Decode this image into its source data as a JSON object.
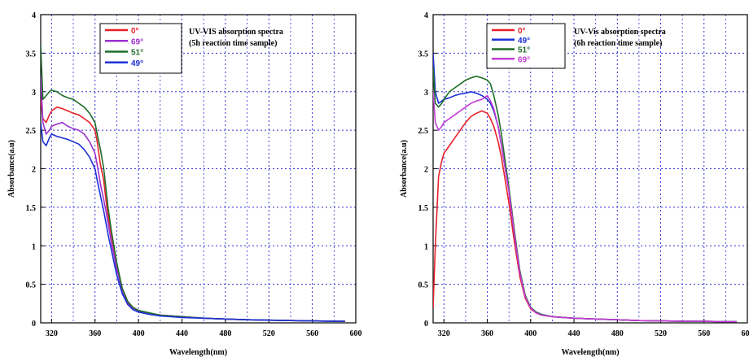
{
  "chart_data": [
    {
      "type": "line",
      "title_lines": [
        "UV-VIS absorption spectra",
        "(5h reaction time sample)"
      ],
      "xlabel": "Wavelength(nm)",
      "ylabel": "Absorbance(a.u)",
      "xlim": [
        310,
        600
      ],
      "ylim": [
        0,
        4
      ],
      "xticks": [
        "320",
        "360",
        "400",
        "440",
        "480",
        "520",
        "560",
        "600"
      ],
      "yticks": [
        "0",
        "0.5",
        "1",
        "1.5",
        "2",
        "2.5",
        "3",
        "3.5",
        "4"
      ],
      "grid": true,
      "legend_position": "top-left",
      "series": [
        {
          "name": "0°",
          "color": "#e8202a",
          "x": [
            310,
            312,
            315,
            318,
            320,
            325,
            330,
            335,
            340,
            345,
            350,
            355,
            360,
            362,
            365,
            368,
            370,
            372,
            375,
            380,
            385,
            390,
            395,
            400,
            410,
            420,
            440,
            460,
            480,
            500,
            520,
            540,
            560,
            580,
            590
          ],
          "y": [
            2.9,
            2.65,
            2.6,
            2.7,
            2.75,
            2.8,
            2.78,
            2.75,
            2.72,
            2.7,
            2.65,
            2.6,
            2.5,
            2.35,
            2.05,
            1.85,
            1.6,
            1.4,
            1.15,
            0.75,
            0.45,
            0.28,
            0.2,
            0.16,
            0.12,
            0.1,
            0.08,
            0.06,
            0.05,
            0.04,
            0.035,
            0.03,
            0.025,
            0.02,
            0.02
          ]
        },
        {
          "name": "69°",
          "color": "#9b30d0",
          "x": [
            310,
            312,
            315,
            318,
            320,
            325,
            330,
            335,
            340,
            345,
            350,
            355,
            360,
            362,
            365,
            368,
            370,
            372,
            375,
            380,
            385,
            390,
            395,
            400,
            410,
            420,
            440,
            460,
            480,
            500,
            520,
            540,
            560,
            580,
            590
          ],
          "y": [
            3.2,
            2.6,
            2.45,
            2.5,
            2.55,
            2.58,
            2.6,
            2.55,
            2.52,
            2.5,
            2.45,
            2.35,
            2.2,
            2.05,
            1.8,
            1.6,
            1.45,
            1.3,
            1.05,
            0.7,
            0.42,
            0.26,
            0.19,
            0.15,
            0.12,
            0.1,
            0.08,
            0.06,
            0.05,
            0.04,
            0.035,
            0.03,
            0.025,
            0.02,
            0.02
          ]
        },
        {
          "name": "51°",
          "color": "#1e6e2a",
          "x": [
            310,
            312,
            315,
            318,
            320,
            325,
            330,
            335,
            340,
            345,
            350,
            355,
            360,
            362,
            365,
            368,
            370,
            372,
            375,
            380,
            385,
            390,
            395,
            400,
            410,
            420,
            440,
            460,
            480,
            500,
            520,
            540,
            560,
            580,
            590
          ],
          "y": [
            3.6,
            2.9,
            2.95,
            3.0,
            3.02,
            3.0,
            2.95,
            2.92,
            2.9,
            2.85,
            2.8,
            2.72,
            2.6,
            2.45,
            2.25,
            2.0,
            1.75,
            1.5,
            1.2,
            0.78,
            0.45,
            0.28,
            0.2,
            0.16,
            0.13,
            0.1,
            0.08,
            0.06,
            0.05,
            0.04,
            0.035,
            0.03,
            0.025,
            0.02,
            0.02
          ]
        },
        {
          "name": "49°",
          "color": "#1c2fd6",
          "x": [
            310,
            312,
            315,
            318,
            320,
            325,
            330,
            335,
            340,
            345,
            350,
            355,
            360,
            362,
            365,
            368,
            370,
            372,
            375,
            380,
            385,
            390,
            395,
            400,
            410,
            420,
            440,
            460,
            480,
            500,
            520,
            540,
            560,
            580,
            590
          ],
          "y": [
            2.6,
            2.35,
            2.3,
            2.4,
            2.45,
            2.42,
            2.4,
            2.38,
            2.35,
            2.32,
            2.25,
            2.15,
            2.0,
            1.85,
            1.65,
            1.45,
            1.3,
            1.15,
            0.95,
            0.62,
            0.38,
            0.24,
            0.17,
            0.14,
            0.11,
            0.09,
            0.07,
            0.06,
            0.05,
            0.04,
            0.035,
            0.03,
            0.025,
            0.02,
            0.02
          ]
        }
      ]
    },
    {
      "type": "line",
      "title_lines": [
        "UV-Vis absorption spectra",
        "(6h reaction time sample)"
      ],
      "xlabel": "Wavelength(nm)",
      "ylabel": "Absorbance(a.u)",
      "xlim": [
        310,
        600
      ],
      "ylim": [
        0,
        4
      ],
      "xticks": [
        "320",
        "360",
        "400",
        "440",
        "480",
        "520",
        "560",
        "600"
      ],
      "yticks": [
        "0",
        "0.5",
        "1",
        "1.5",
        "2",
        "2.5",
        "3",
        "3.5",
        "4"
      ],
      "grid": true,
      "legend_position": "top-left",
      "series": [
        {
          "name": "0°",
          "color": "#e8202a",
          "x": [
            310,
            312,
            315,
            318,
            320,
            325,
            330,
            335,
            340,
            345,
            350,
            355,
            360,
            363,
            366,
            370,
            373,
            376,
            380,
            385,
            390,
            395,
            400,
            405,
            410,
            420,
            440,
            460,
            480,
            500,
            520,
            540,
            560,
            580,
            590
          ],
          "y": [
            0.2,
            1.0,
            1.9,
            2.1,
            2.2,
            2.3,
            2.4,
            2.5,
            2.6,
            2.68,
            2.72,
            2.75,
            2.72,
            2.65,
            2.55,
            2.35,
            2.15,
            1.9,
            1.55,
            1.05,
            0.6,
            0.32,
            0.18,
            0.13,
            0.1,
            0.08,
            0.06,
            0.05,
            0.04,
            0.03,
            0.025,
            0.02,
            0.02,
            0.015,
            0.015
          ]
        },
        {
          "name": "49°",
          "color": "#1c2fd6",
          "x": [
            310,
            312,
            315,
            318,
            320,
            325,
            330,
            335,
            340,
            345,
            350,
            355,
            360,
            363,
            366,
            370,
            373,
            376,
            380,
            385,
            390,
            395,
            400,
            405,
            410,
            420,
            440,
            460,
            480,
            500,
            520,
            540,
            560,
            580,
            590
          ],
          "y": [
            3.5,
            3.0,
            2.85,
            2.88,
            2.9,
            2.92,
            2.95,
            2.97,
            2.98,
            3.0,
            2.98,
            2.95,
            2.9,
            2.85,
            2.75,
            2.55,
            2.3,
            2.05,
            1.7,
            1.15,
            0.65,
            0.35,
            0.2,
            0.14,
            0.11,
            0.08,
            0.06,
            0.05,
            0.04,
            0.03,
            0.025,
            0.02,
            0.02,
            0.015,
            0.015
          ]
        },
        {
          "name": "51°",
          "color": "#1e6e2a",
          "x": [
            310,
            312,
            315,
            318,
            320,
            325,
            330,
            335,
            340,
            345,
            350,
            355,
            360,
            363,
            366,
            370,
            373,
            376,
            380,
            385,
            390,
            395,
            400,
            405,
            410,
            420,
            440,
            460,
            480,
            500,
            520,
            540,
            560,
            580,
            590
          ],
          "y": [
            3.3,
            2.85,
            2.8,
            2.85,
            2.9,
            3.0,
            3.05,
            3.1,
            3.15,
            3.18,
            3.2,
            3.18,
            3.15,
            3.1,
            2.95,
            2.7,
            2.45,
            2.15,
            1.75,
            1.2,
            0.68,
            0.36,
            0.2,
            0.14,
            0.11,
            0.08,
            0.06,
            0.05,
            0.04,
            0.03,
            0.025,
            0.02,
            0.02,
            0.015,
            0.015
          ]
        },
        {
          "name": "69°",
          "color": "#c33bd6",
          "x": [
            310,
            312,
            315,
            318,
            320,
            325,
            330,
            335,
            340,
            345,
            350,
            355,
            360,
            363,
            366,
            370,
            373,
            376,
            380,
            385,
            390,
            395,
            400,
            405,
            410,
            420,
            440,
            460,
            480,
            500,
            520,
            540,
            560,
            580,
            590
          ],
          "y": [
            3.0,
            2.6,
            2.5,
            2.55,
            2.6,
            2.65,
            2.7,
            2.75,
            2.8,
            2.85,
            2.88,
            2.9,
            2.95,
            2.88,
            2.78,
            2.55,
            2.3,
            2.05,
            1.7,
            1.15,
            0.65,
            0.34,
            0.19,
            0.13,
            0.1,
            0.08,
            0.06,
            0.05,
            0.04,
            0.03,
            0.025,
            0.02,
            0.02,
            0.015,
            0.015
          ]
        }
      ]
    }
  ]
}
